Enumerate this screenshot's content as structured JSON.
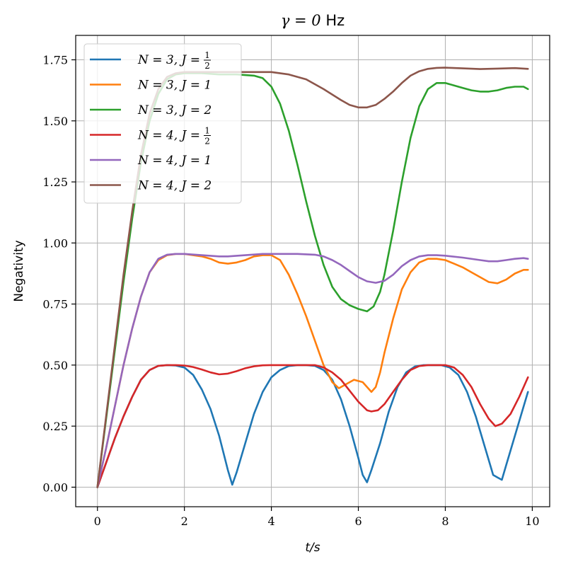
{
  "chart_data": {
    "type": "line",
    "title": "γ = 0 Hz",
    "xlabel": "t/s",
    "ylabel": "Negativity",
    "xlim": [
      -0.5,
      10.4
    ],
    "ylim": [
      -0.08,
      1.85
    ],
    "xticks": [
      0,
      2,
      4,
      6,
      8,
      10
    ],
    "yticks": [
      0.0,
      0.25,
      0.5,
      0.75,
      1.0,
      1.25,
      1.5,
      1.75
    ],
    "xtick_labels": [
      "0",
      "2",
      "4",
      "6",
      "8",
      "10"
    ],
    "ytick_labels": [
      "0.00",
      "0.25",
      "0.50",
      "0.75",
      "1.00",
      "1.25",
      "1.50",
      "1.75"
    ],
    "grid": true,
    "legend_position": "upper-left",
    "series": [
      {
        "name": "N = 3, J = 1/2",
        "label_lhs": "N = 3, J =",
        "label_num": "1",
        "label_den": "2",
        "color": "#1f77b4",
        "points": [
          [
            0,
            0
          ],
          [
            0.2,
            0.1
          ],
          [
            0.4,
            0.2
          ],
          [
            0.6,
            0.29
          ],
          [
            0.8,
            0.37
          ],
          [
            1.0,
            0.44
          ],
          [
            1.2,
            0.48
          ],
          [
            1.4,
            0.497
          ],
          [
            1.6,
            0.5
          ],
          [
            1.8,
            0.498
          ],
          [
            2.0,
            0.49
          ],
          [
            2.2,
            0.46
          ],
          [
            2.4,
            0.4
          ],
          [
            2.6,
            0.32
          ],
          [
            2.8,
            0.21
          ],
          [
            3.0,
            0.07
          ],
          [
            3.1,
            0.01
          ],
          [
            3.2,
            0.06
          ],
          [
            3.4,
            0.18
          ],
          [
            3.6,
            0.3
          ],
          [
            3.8,
            0.39
          ],
          [
            4.0,
            0.45
          ],
          [
            4.2,
            0.48
          ],
          [
            4.4,
            0.496
          ],
          [
            4.6,
            0.5
          ],
          [
            4.8,
            0.5
          ],
          [
            5.0,
            0.497
          ],
          [
            5.2,
            0.48
          ],
          [
            5.4,
            0.44
          ],
          [
            5.6,
            0.36
          ],
          [
            5.8,
            0.25
          ],
          [
            6.0,
            0.12
          ],
          [
            6.1,
            0.05
          ],
          [
            6.2,
            0.02
          ],
          [
            6.3,
            0.07
          ],
          [
            6.5,
            0.18
          ],
          [
            6.7,
            0.31
          ],
          [
            6.9,
            0.41
          ],
          [
            7.1,
            0.47
          ],
          [
            7.3,
            0.494
          ],
          [
            7.5,
            0.5
          ],
          [
            7.7,
            0.5
          ],
          [
            7.9,
            0.5
          ],
          [
            8.1,
            0.49
          ],
          [
            8.3,
            0.46
          ],
          [
            8.5,
            0.39
          ],
          [
            8.7,
            0.29
          ],
          [
            8.9,
            0.17
          ],
          [
            9.1,
            0.05
          ],
          [
            9.2,
            0.04
          ],
          [
            9.3,
            0.03
          ],
          [
            9.4,
            0.09
          ],
          [
            9.6,
            0.21
          ],
          [
            9.8,
            0.33
          ],
          [
            9.9,
            0.39
          ]
        ]
      },
      {
        "name": "N = 3, J = 1",
        "label_lhs": "N = 3, J = 1",
        "color": "#ff7f0e",
        "points": [
          [
            0,
            0
          ],
          [
            0.2,
            0.16
          ],
          [
            0.4,
            0.33
          ],
          [
            0.6,
            0.5
          ],
          [
            0.8,
            0.65
          ],
          [
            1.0,
            0.78
          ],
          [
            1.2,
            0.88
          ],
          [
            1.4,
            0.93
          ],
          [
            1.6,
            0.95
          ],
          [
            1.8,
            0.955
          ],
          [
            2.0,
            0.955
          ],
          [
            2.2,
            0.95
          ],
          [
            2.4,
            0.945
          ],
          [
            2.6,
            0.935
          ],
          [
            2.8,
            0.92
          ],
          [
            3.0,
            0.915
          ],
          [
            3.2,
            0.92
          ],
          [
            3.4,
            0.93
          ],
          [
            3.6,
            0.945
          ],
          [
            3.8,
            0.95
          ],
          [
            4.0,
            0.95
          ],
          [
            4.2,
            0.93
          ],
          [
            4.4,
            0.87
          ],
          [
            4.6,
            0.79
          ],
          [
            4.8,
            0.7
          ],
          [
            5.0,
            0.6
          ],
          [
            5.2,
            0.5
          ],
          [
            5.4,
            0.43
          ],
          [
            5.55,
            0.405
          ],
          [
            5.7,
            0.42
          ],
          [
            5.9,
            0.44
          ],
          [
            6.1,
            0.43
          ],
          [
            6.3,
            0.39
          ],
          [
            6.4,
            0.41
          ],
          [
            6.5,
            0.47
          ],
          [
            6.6,
            0.55
          ],
          [
            6.8,
            0.69
          ],
          [
            7.0,
            0.81
          ],
          [
            7.2,
            0.88
          ],
          [
            7.4,
            0.92
          ],
          [
            7.6,
            0.935
          ],
          [
            7.8,
            0.935
          ],
          [
            8.0,
            0.93
          ],
          [
            8.2,
            0.915
          ],
          [
            8.4,
            0.9
          ],
          [
            8.6,
            0.88
          ],
          [
            8.8,
            0.86
          ],
          [
            9.0,
            0.84
          ],
          [
            9.2,
            0.835
          ],
          [
            9.4,
            0.85
          ],
          [
            9.6,
            0.875
          ],
          [
            9.8,
            0.89
          ],
          [
            9.9,
            0.89
          ]
        ]
      },
      {
        "name": "N = 3, J = 2",
        "label_lhs": "N = 3, J = 2",
        "color": "#2ca02c",
        "points": [
          [
            0,
            0
          ],
          [
            0.2,
            0.28
          ],
          [
            0.4,
            0.56
          ],
          [
            0.6,
            0.84
          ],
          [
            0.8,
            1.1
          ],
          [
            1.0,
            1.33
          ],
          [
            1.2,
            1.5
          ],
          [
            1.4,
            1.61
          ],
          [
            1.6,
            1.67
          ],
          [
            1.8,
            1.69
          ],
          [
            2.0,
            1.695
          ],
          [
            2.4,
            1.695
          ],
          [
            2.8,
            1.69
          ],
          [
            3.2,
            1.69
          ],
          [
            3.6,
            1.685
          ],
          [
            3.8,
            1.675
          ],
          [
            4.0,
            1.64
          ],
          [
            4.2,
            1.57
          ],
          [
            4.4,
            1.46
          ],
          [
            4.6,
            1.32
          ],
          [
            4.8,
            1.17
          ],
          [
            5.0,
            1.03
          ],
          [
            5.2,
            0.91
          ],
          [
            5.4,
            0.82
          ],
          [
            5.6,
            0.77
          ],
          [
            5.8,
            0.745
          ],
          [
            6.0,
            0.73
          ],
          [
            6.2,
            0.72
          ],
          [
            6.35,
            0.74
          ],
          [
            6.5,
            0.8
          ],
          [
            6.6,
            0.87
          ],
          [
            6.8,
            1.05
          ],
          [
            7.0,
            1.25
          ],
          [
            7.2,
            1.43
          ],
          [
            7.4,
            1.56
          ],
          [
            7.6,
            1.63
          ],
          [
            7.8,
            1.655
          ],
          [
            8.0,
            1.655
          ],
          [
            8.2,
            1.645
          ],
          [
            8.4,
            1.635
          ],
          [
            8.6,
            1.625
          ],
          [
            8.8,
            1.62
          ],
          [
            9.0,
            1.62
          ],
          [
            9.2,
            1.625
          ],
          [
            9.4,
            1.635
          ],
          [
            9.6,
            1.64
          ],
          [
            9.8,
            1.64
          ],
          [
            9.9,
            1.63
          ]
        ]
      },
      {
        "name": "N = 4, J = 1/2",
        "label_lhs": "N = 4, J =",
        "label_num": "1",
        "label_den": "2",
        "color": "#d62728",
        "points": [
          [
            0,
            0
          ],
          [
            0.2,
            0.1
          ],
          [
            0.4,
            0.2
          ],
          [
            0.6,
            0.29
          ],
          [
            0.8,
            0.37
          ],
          [
            1.0,
            0.44
          ],
          [
            1.2,
            0.48
          ],
          [
            1.4,
            0.497
          ],
          [
            1.6,
            0.5
          ],
          [
            1.8,
            0.5
          ],
          [
            2.0,
            0.498
          ],
          [
            2.2,
            0.492
          ],
          [
            2.4,
            0.482
          ],
          [
            2.6,
            0.47
          ],
          [
            2.8,
            0.462
          ],
          [
            3.0,
            0.465
          ],
          [
            3.2,
            0.475
          ],
          [
            3.4,
            0.487
          ],
          [
            3.6,
            0.495
          ],
          [
            3.8,
            0.499
          ],
          [
            4.0,
            0.5
          ],
          [
            4.4,
            0.5
          ],
          [
            4.8,
            0.5
          ],
          [
            5.0,
            0.5
          ],
          [
            5.2,
            0.49
          ],
          [
            5.4,
            0.47
          ],
          [
            5.6,
            0.44
          ],
          [
            5.8,
            0.395
          ],
          [
            6.0,
            0.35
          ],
          [
            6.2,
            0.315
          ],
          [
            6.3,
            0.31
          ],
          [
            6.45,
            0.315
          ],
          [
            6.6,
            0.34
          ],
          [
            6.8,
            0.39
          ],
          [
            7.0,
            0.44
          ],
          [
            7.2,
            0.48
          ],
          [
            7.4,
            0.496
          ],
          [
            7.6,
            0.5
          ],
          [
            7.8,
            0.5
          ],
          [
            8.0,
            0.5
          ],
          [
            8.2,
            0.49
          ],
          [
            8.4,
            0.46
          ],
          [
            8.6,
            0.41
          ],
          [
            8.8,
            0.34
          ],
          [
            9.0,
            0.28
          ],
          [
            9.15,
            0.25
          ],
          [
            9.3,
            0.26
          ],
          [
            9.5,
            0.3
          ],
          [
            9.7,
            0.37
          ],
          [
            9.9,
            0.45
          ]
        ]
      },
      {
        "name": "N = 4, J = 1",
        "label_lhs": "N = 4, J = 1",
        "color": "#9467bd",
        "points": [
          [
            0,
            0
          ],
          [
            0.2,
            0.16
          ],
          [
            0.4,
            0.33
          ],
          [
            0.6,
            0.5
          ],
          [
            0.8,
            0.65
          ],
          [
            1.0,
            0.78
          ],
          [
            1.2,
            0.88
          ],
          [
            1.4,
            0.935
          ],
          [
            1.6,
            0.952
          ],
          [
            1.8,
            0.955
          ],
          [
            2.0,
            0.955
          ],
          [
            2.4,
            0.95
          ],
          [
            2.8,
            0.945
          ],
          [
            3.0,
            0.945
          ],
          [
            3.4,
            0.95
          ],
          [
            3.8,
            0.955
          ],
          [
            4.2,
            0.955
          ],
          [
            4.6,
            0.955
          ],
          [
            5.0,
            0.952
          ],
          [
            5.2,
            0.945
          ],
          [
            5.4,
            0.93
          ],
          [
            5.6,
            0.91
          ],
          [
            5.8,
            0.885
          ],
          [
            6.0,
            0.86
          ],
          [
            6.2,
            0.843
          ],
          [
            6.4,
            0.837
          ],
          [
            6.6,
            0.845
          ],
          [
            6.8,
            0.87
          ],
          [
            7.0,
            0.905
          ],
          [
            7.2,
            0.93
          ],
          [
            7.4,
            0.945
          ],
          [
            7.6,
            0.95
          ],
          [
            7.8,
            0.95
          ],
          [
            8.0,
            0.948
          ],
          [
            8.4,
            0.94
          ],
          [
            8.8,
            0.93
          ],
          [
            9.0,
            0.925
          ],
          [
            9.2,
            0.925
          ],
          [
            9.4,
            0.93
          ],
          [
            9.6,
            0.935
          ],
          [
            9.8,
            0.938
          ],
          [
            9.9,
            0.935
          ]
        ]
      },
      {
        "name": "N = 4, J = 2",
        "label_lhs": "N = 4, J = 2",
        "color": "#8c564b",
        "points": [
          [
            0,
            0
          ],
          [
            0.2,
            0.29
          ],
          [
            0.4,
            0.58
          ],
          [
            0.6,
            0.87
          ],
          [
            0.8,
            1.13
          ],
          [
            1.0,
            1.36
          ],
          [
            1.2,
            1.53
          ],
          [
            1.4,
            1.63
          ],
          [
            1.6,
            1.68
          ],
          [
            1.8,
            1.695
          ],
          [
            2.0,
            1.7
          ],
          [
            2.4,
            1.7
          ],
          [
            2.8,
            1.7
          ],
          [
            3.2,
            1.7
          ],
          [
            3.6,
            1.7
          ],
          [
            4.0,
            1.7
          ],
          [
            4.4,
            1.69
          ],
          [
            4.8,
            1.67
          ],
          [
            5.2,
            1.63
          ],
          [
            5.6,
            1.585
          ],
          [
            5.8,
            1.565
          ],
          [
            6.0,
            1.555
          ],
          [
            6.2,
            1.555
          ],
          [
            6.4,
            1.565
          ],
          [
            6.6,
            1.59
          ],
          [
            6.8,
            1.62
          ],
          [
            7.0,
            1.655
          ],
          [
            7.2,
            1.685
          ],
          [
            7.4,
            1.703
          ],
          [
            7.6,
            1.713
          ],
          [
            7.8,
            1.717
          ],
          [
            8.0,
            1.718
          ],
          [
            8.4,
            1.715
          ],
          [
            8.8,
            1.712
          ],
          [
            9.2,
            1.714
          ],
          [
            9.6,
            1.716
          ],
          [
            9.9,
            1.713
          ]
        ]
      }
    ]
  }
}
